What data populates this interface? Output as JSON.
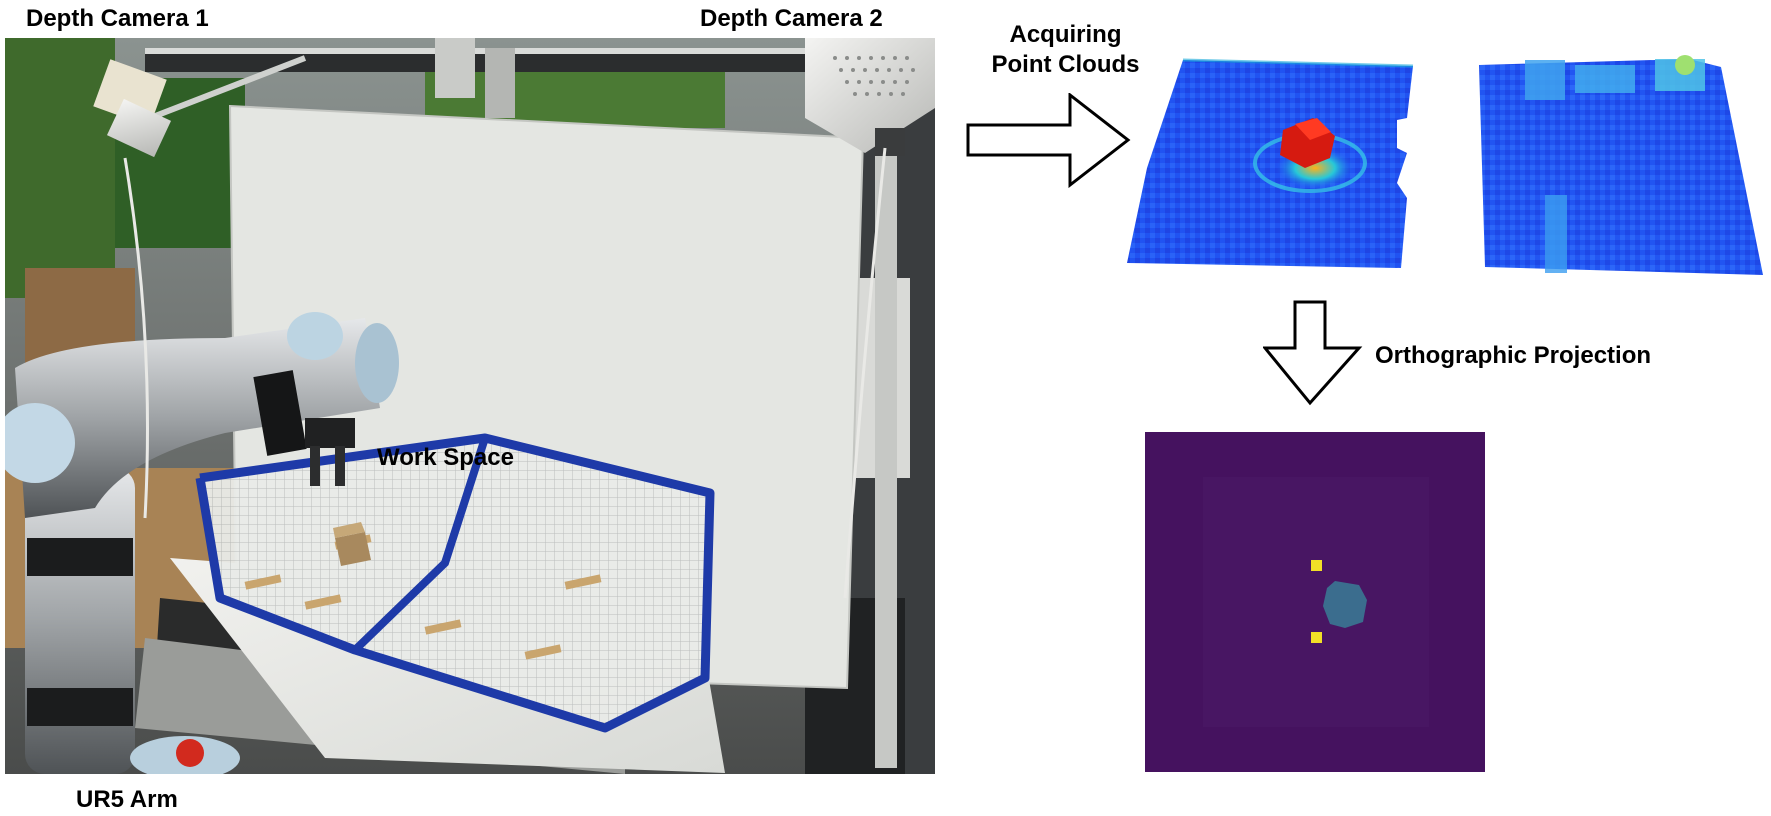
{
  "labels": {
    "depth_camera_1": "Depth Camera 1",
    "depth_camera_2": "Depth Camera 2",
    "work_space": "Work Space",
    "ur5_arm": "UR5 Arm",
    "acquiring_line1": "Acquiring",
    "acquiring_line2": "Point Clouds",
    "orthographic_projection": "Orthographic Projection"
  },
  "colors": {
    "cloud_blue": "#1f4ef0",
    "cloud_hot": "#d61a10",
    "projection_bg": "#45125f",
    "projection_block": "#3b6d8e",
    "marker_yellow": "#f2e027",
    "mesh_border": "#1e3aa8"
  },
  "icons": {
    "arrow_right": "hollow-arrow-right-icon",
    "arrow_down": "hollow-arrow-down-icon"
  }
}
